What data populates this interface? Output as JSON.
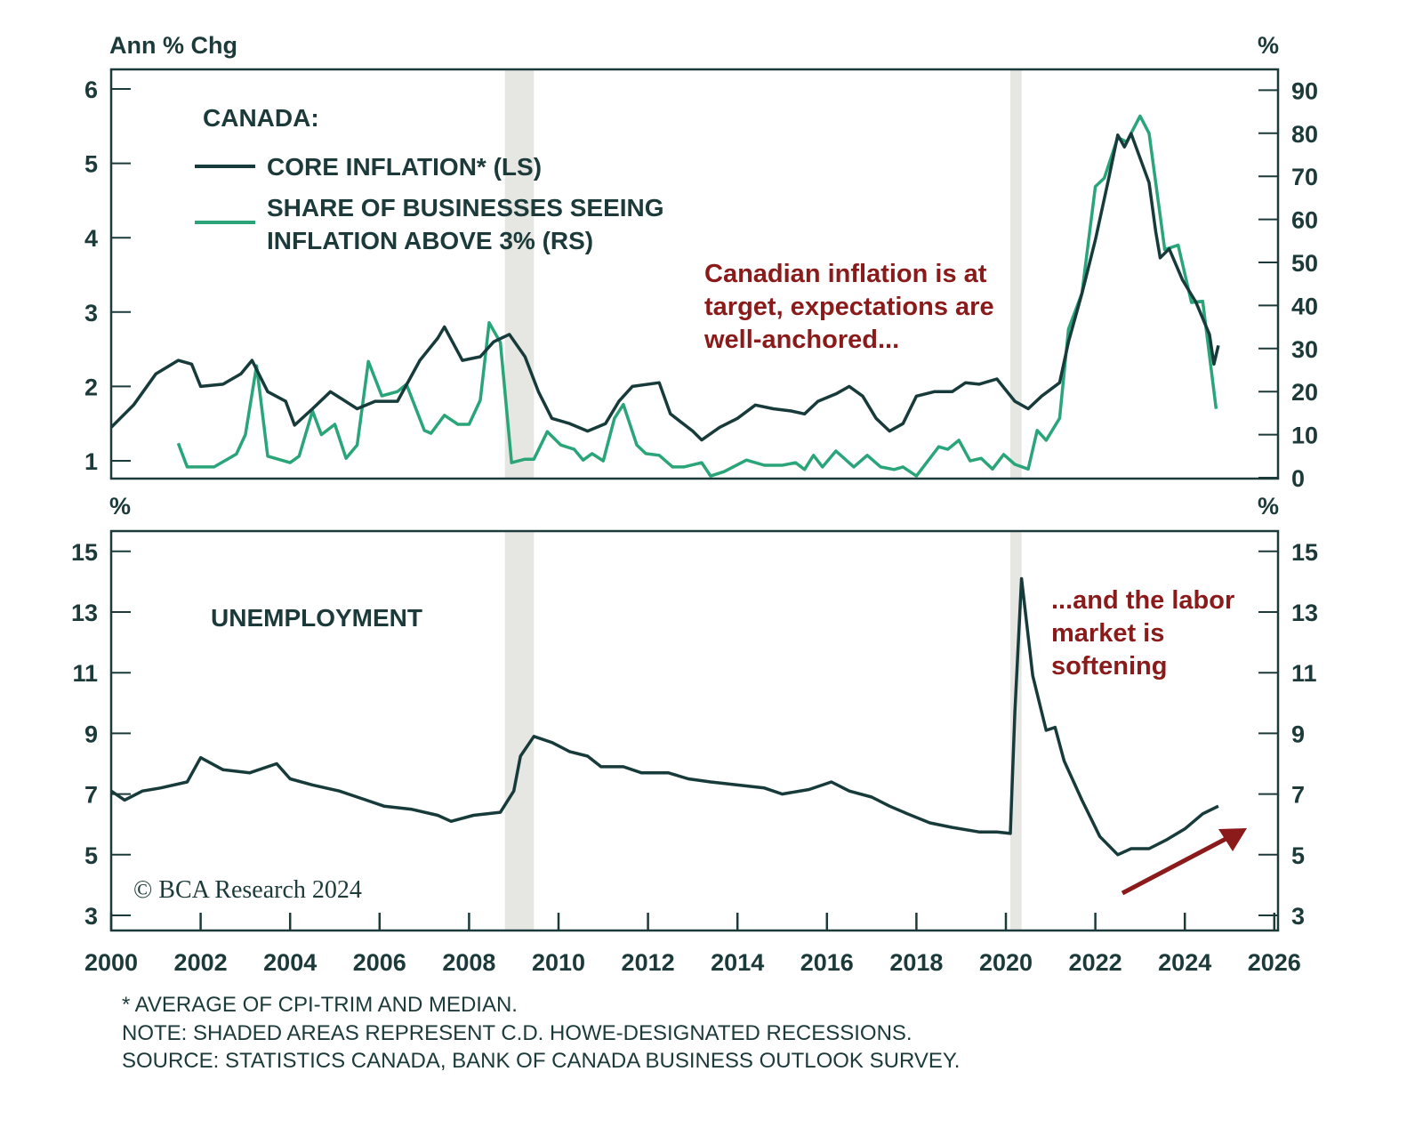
{
  "colors": {
    "core": "#173a3a",
    "share": "#2aa57a",
    "annotation": "#8b1a1a",
    "recession": "#e6e6e2",
    "axis": "#1c3a3a"
  },
  "chart_data": [
    {
      "type": "line",
      "title": "CANADA:",
      "left_unit": "Ann % Chg",
      "right_unit": "%",
      "ylim_left": [
        0.8,
        6.3
      ],
      "ylim_right": [
        0,
        95
      ],
      "yticks_left": [
        1,
        2,
        3,
        4,
        5,
        6
      ],
      "yticks_right": [
        0,
        10,
        20,
        30,
        40,
        50,
        60,
        70,
        80,
        90
      ],
      "legend": [
        "CORE INFLATION* (LS)",
        "SHARE OF BUSINESSES SEEING",
        "INFLATION ABOVE 3% (RS)"
      ],
      "annotation": [
        "Canadian inflation is at",
        "target, expectations are",
        "well-anchored..."
      ],
      "series": [
        {
          "name": "CORE INFLATION* (LS)",
          "axis": "left",
          "x": [
            2000.0,
            2000.5,
            2001.0,
            2001.5,
            2001.8,
            2002.0,
            2002.5,
            2002.9,
            2003.15,
            2003.5,
            2003.9,
            2004.1,
            2004.5,
            2004.9,
            2005.5,
            2005.9,
            2006.4,
            2006.9,
            2007.3,
            2007.45,
            2007.85,
            2008.25,
            2008.55,
            2008.9,
            2009.25,
            2009.55,
            2009.85,
            2010.25,
            2010.65,
            2011.05,
            2011.35,
            2011.65,
            2012.25,
            2012.5,
            2013.0,
            2013.2,
            2013.6,
            2014.0,
            2014.4,
            2014.8,
            2015.2,
            2015.5,
            2015.8,
            2016.2,
            2016.5,
            2016.8,
            2017.1,
            2017.4,
            2017.7,
            2018.0,
            2018.4,
            2018.8,
            2019.1,
            2019.4,
            2019.8,
            2020.2,
            2020.5,
            2020.8,
            2021.2,
            2021.4,
            2021.7,
            2022.0,
            2022.3,
            2022.5,
            2022.65,
            2022.8,
            2023.2,
            2023.35,
            2023.45,
            2023.65,
            2023.95,
            2024.25,
            2024.55,
            2024.65,
            2024.75
          ],
          "values": [
            1.45,
            1.75,
            2.17,
            2.35,
            2.3,
            2.0,
            2.03,
            2.17,
            2.35,
            1.93,
            1.8,
            1.48,
            1.7,
            1.93,
            1.7,
            1.8,
            1.8,
            2.35,
            2.65,
            2.8,
            2.35,
            2.4,
            2.6,
            2.7,
            2.4,
            1.93,
            1.57,
            1.5,
            1.4,
            1.5,
            1.8,
            2.0,
            2.05,
            1.63,
            1.4,
            1.28,
            1.45,
            1.57,
            1.75,
            1.7,
            1.67,
            1.63,
            1.8,
            1.9,
            2.0,
            1.87,
            1.57,
            1.4,
            1.5,
            1.87,
            1.93,
            1.93,
            2.05,
            2.03,
            2.1,
            1.8,
            1.7,
            1.87,
            2.05,
            2.6,
            3.25,
            3.97,
            4.8,
            5.38,
            5.22,
            5.4,
            4.74,
            4.08,
            3.73,
            3.85,
            3.43,
            3.13,
            2.7,
            2.3,
            2.55
          ]
        },
        {
          "name": "SHARE OF BUSINESSES SEEING INFLATION ABOVE 3% (RS)",
          "axis": "right",
          "x": [
            2001.5,
            2001.7,
            2002.3,
            2002.8,
            2003.0,
            2003.25,
            2003.5,
            2004.0,
            2004.2,
            2004.5,
            2004.7,
            2005.0,
            2005.25,
            2005.5,
            2005.75,
            2006.05,
            2006.4,
            2006.6,
            2007.0,
            2007.15,
            2007.45,
            2007.75,
            2008.0,
            2008.25,
            2008.45,
            2008.7,
            2008.95,
            2009.25,
            2009.45,
            2009.75,
            2010.05,
            2010.35,
            2010.55,
            2010.75,
            2011.0,
            2011.25,
            2011.45,
            2011.75,
            2011.95,
            2012.25,
            2012.55,
            2012.8,
            2013.2,
            2013.4,
            2013.7,
            2014.2,
            2014.6,
            2015.0,
            2015.3,
            2015.5,
            2015.7,
            2015.9,
            2016.2,
            2016.6,
            2016.9,
            2017.2,
            2017.5,
            2017.7,
            2018.0,
            2018.5,
            2018.7,
            2018.95,
            2019.2,
            2019.45,
            2019.7,
            2019.95,
            2020.2,
            2020.5,
            2020.7,
            2020.9,
            2021.2,
            2021.4,
            2021.7,
            2022.0,
            2022.2,
            2022.5,
            2022.7,
            2023.0,
            2023.2,
            2023.55,
            2023.85,
            2024.15,
            2024.4,
            2024.7
          ],
          "values": [
            8,
            2.5,
            2.5,
            5.5,
            10,
            26,
            5,
            3.5,
            5,
            15.5,
            10,
            12.4,
            4.5,
            7.6,
            27,
            19,
            20,
            21.7,
            11,
            10.3,
            14.5,
            12.4,
            12.4,
            18,
            36,
            31.4,
            3.5,
            4.3,
            4.3,
            10.7,
            7.6,
            6.6,
            4.1,
            5.6,
            3.9,
            13.8,
            17,
            7.6,
            5.6,
            5.2,
            2.5,
            2.5,
            3.5,
            0.4,
            1.4,
            4.1,
            2.9,
            2.9,
            3.5,
            1.9,
            5.2,
            2.5,
            6.2,
            2.5,
            5.2,
            2.5,
            1.9,
            2.5,
            0.4,
            7.2,
            6.6,
            8.7,
            3.9,
            4.5,
            2,
            5.4,
            3.1,
            2,
            11,
            8.7,
            13.8,
            34.5,
            42.8,
            67.6,
            69.6,
            79,
            78,
            84,
            80,
            53,
            54,
            40.7,
            41,
            16
          ]
        }
      ]
    },
    {
      "type": "line",
      "title": "UNEMPLOYMENT",
      "left_unit": "%",
      "right_unit": "%",
      "ylim": [
        2.5,
        15.7
      ],
      "yticks": [
        3,
        5,
        7,
        9,
        11,
        13,
        15
      ],
      "annotation": [
        "...and the labor",
        "market is",
        "softening"
      ],
      "xlim": [
        2000,
        2026
      ],
      "xticks": [
        "2000",
        "2002",
        "2004",
        "2006",
        "2008",
        "2010",
        "2012",
        "2014",
        "2016",
        "2018",
        "2020",
        "2022",
        "2024",
        "2026"
      ],
      "recessions": [
        [
          2008.8,
          2009.45
        ],
        [
          2020.1,
          2020.35
        ]
      ],
      "series": [
        {
          "name": "UNEMPLOYMENT",
          "x": [
            2000,
            2000.3,
            2000.7,
            2001.1,
            2001.7,
            2002.0,
            2002.5,
            2003.1,
            2003.5,
            2003.7,
            2004.0,
            2004.5,
            2005.1,
            2005.7,
            2006.1,
            2006.7,
            2007.3,
            2007.6,
            2008.1,
            2008.7,
            2009.0,
            2009.15,
            2009.45,
            2009.85,
            2010.25,
            2010.65,
            2010.95,
            2011.45,
            2011.85,
            2012.45,
            2012.9,
            2013.4,
            2014.0,
            2014.6,
            2015.0,
            2015.6,
            2016.1,
            2016.5,
            2017.0,
            2017.4,
            2017.8,
            2018.3,
            2018.8,
            2019.4,
            2019.8,
            2020.1,
            2020.2,
            2020.35,
            2020.6,
            2020.9,
            2021.1,
            2021.3,
            2021.7,
            2022.1,
            2022.5,
            2022.8,
            2023.2,
            2023.6,
            2024.0,
            2024.4,
            2024.75
          ],
          "values": [
            7.1,
            6.8,
            7.1,
            7.2,
            7.4,
            8.2,
            7.8,
            7.7,
            7.9,
            8.0,
            7.5,
            7.3,
            7.1,
            6.8,
            6.6,
            6.5,
            6.3,
            6.1,
            6.3,
            6.4,
            7.1,
            8.25,
            8.9,
            8.7,
            8.4,
            8.25,
            7.9,
            7.9,
            7.7,
            7.7,
            7.5,
            7.4,
            7.3,
            7.2,
            7.0,
            7.15,
            7.4,
            7.1,
            6.9,
            6.6,
            6.35,
            6.05,
            5.9,
            5.75,
            5.75,
            5.7,
            9.7,
            14.1,
            10.9,
            9.1,
            9.2,
            8.1,
            6.8,
            5.6,
            5.0,
            5.2,
            5.2,
            5.5,
            5.85,
            6.35,
            6.6
          ]
        }
      ]
    }
  ],
  "credit": "© BCA Research 2024",
  "footnotes": [
    "* AVERAGE OF CPI-TRIM AND MEDIAN.",
    "NOTE: SHADED AREAS REPRESENT C.D. HOWE-DESIGNATED RECESSIONS.",
    "SOURCE: STATISTICS CANADA, BANK OF CANADA BUSINESS OUTLOOK SURVEY."
  ]
}
